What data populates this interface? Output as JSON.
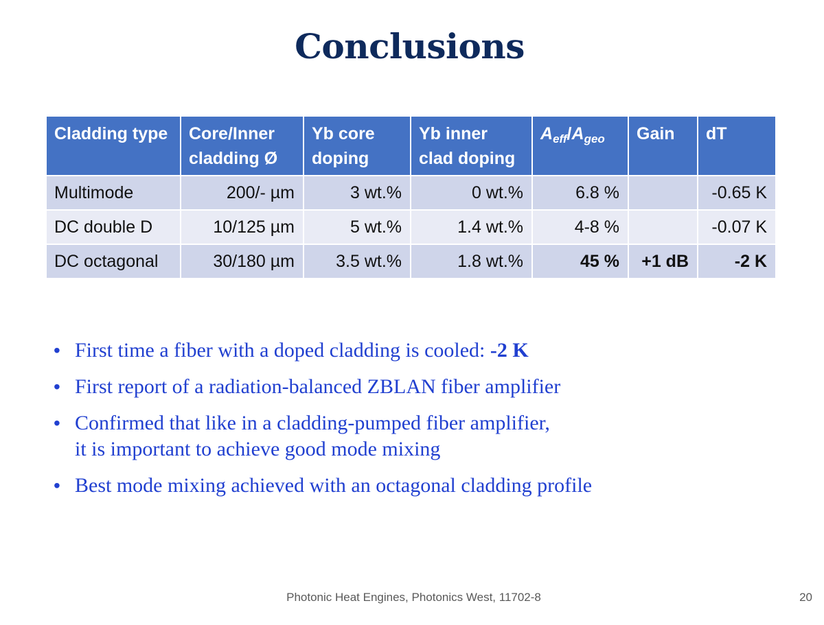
{
  "slide": {
    "title": "Conclusions",
    "footer": "Photonic Heat Engines, Photonics West, 11702-8",
    "page_number": "20"
  },
  "table": {
    "headers": {
      "cladding_type": "Cladding type",
      "core_inner": "Core/Inner cladding Ø",
      "yb_core": "Yb core doping",
      "yb_inner": "Yb inner clad doping",
      "a_eff_base": "A",
      "a_eff_sub": "eff",
      "a_sep": "/",
      "a_geo_base": "A",
      "a_geo_sub": "geo",
      "gain": "Gain",
      "dt": "dT"
    },
    "rows": [
      {
        "type": "Multimode",
        "diameter": "200/- µm",
        "yb_core": "3 wt.%",
        "yb_inner": "0 wt.%",
        "aeff_ageo": "6.8 %",
        "gain": "",
        "dt": "-0.65 K"
      },
      {
        "type": "DC double D",
        "diameter": "10/125 µm",
        "yb_core": "5 wt.%",
        "yb_inner": "1.4 wt.%",
        "aeff_ageo": "4-8 %",
        "gain": "",
        "dt": "-0.07 K"
      },
      {
        "type": "DC octagonal",
        "diameter": "30/180 µm",
        "yb_core": "3.5 wt.%",
        "yb_inner": "1.8 wt.%",
        "aeff_ageo": "45 %",
        "gain": "+1 dB",
        "dt": "-2 K"
      }
    ]
  },
  "bullets": {
    "b1_text": "First time a fiber with a doped cladding is cooled: ",
    "b1_emphasis": "-2 K",
    "b2": "First report of a radiation-balanced ZBLAN fiber amplifier",
    "b3_line1": "Confirmed that like in a cladding-pumped fiber amplifier,",
    "b3_line2": "it is important to achieve good mode mixing",
    "b4": "Best mode mixing achieved with an octagonal cladding profile"
  },
  "colors": {
    "title": "#0e2a5c",
    "header_bg": "#4472c4",
    "row_dark": "#cfd5ea",
    "row_light": "#e9ebf5",
    "bullet_text": "#2140d0"
  }
}
